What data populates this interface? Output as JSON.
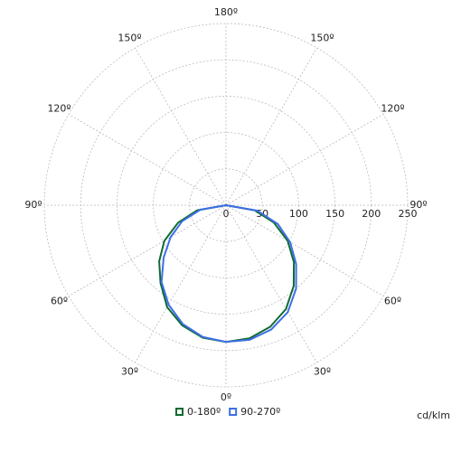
{
  "chart_data": {
    "type": "polar",
    "unit_label": "cd/klm",
    "rlim": [
      0,
      250
    ],
    "rticks": [
      0,
      50,
      100,
      150,
      200,
      250
    ],
    "angle_ticks": [
      {
        "value": -150,
        "label": "150º"
      },
      {
        "value": -120,
        "label": "120º"
      },
      {
        "value": -90,
        "label": "90º"
      },
      {
        "value": -60,
        "label": "60º"
      },
      {
        "value": -30,
        "label": "30º"
      },
      {
        "value": 0,
        "label": "0º"
      },
      {
        "value": 30,
        "label": "30º"
      },
      {
        "value": 60,
        "label": "60º"
      },
      {
        "value": 90,
        "label": "90º"
      },
      {
        "value": 120,
        "label": "120º"
      },
      {
        "value": 150,
        "label": "150º"
      },
      {
        "value": 180,
        "label": "180º"
      }
    ],
    "grid": true,
    "x": [
      -90,
      -80,
      -70,
      -60,
      -50,
      -40,
      -30,
      -20,
      -10,
      0,
      10,
      20,
      30,
      40,
      50,
      60,
      70,
      80,
      90
    ],
    "series": [
      {
        "name": "0-180º",
        "color": "#0f6b2f",
        "values": [
          0,
          40,
          70,
          98,
          120,
          140,
          162,
          176,
          185,
          188,
          186,
          178,
          165,
          145,
          122,
          98,
          70,
          40,
          0
        ]
      },
      {
        "name": "90-270º",
        "color": "#3d6ee8",
        "values": [
          0,
          36,
          64,
          88,
          112,
          138,
          158,
          174,
          184,
          188,
          188,
          182,
          170,
          150,
          126,
          102,
          76,
          44,
          0
        ]
      }
    ]
  }
}
